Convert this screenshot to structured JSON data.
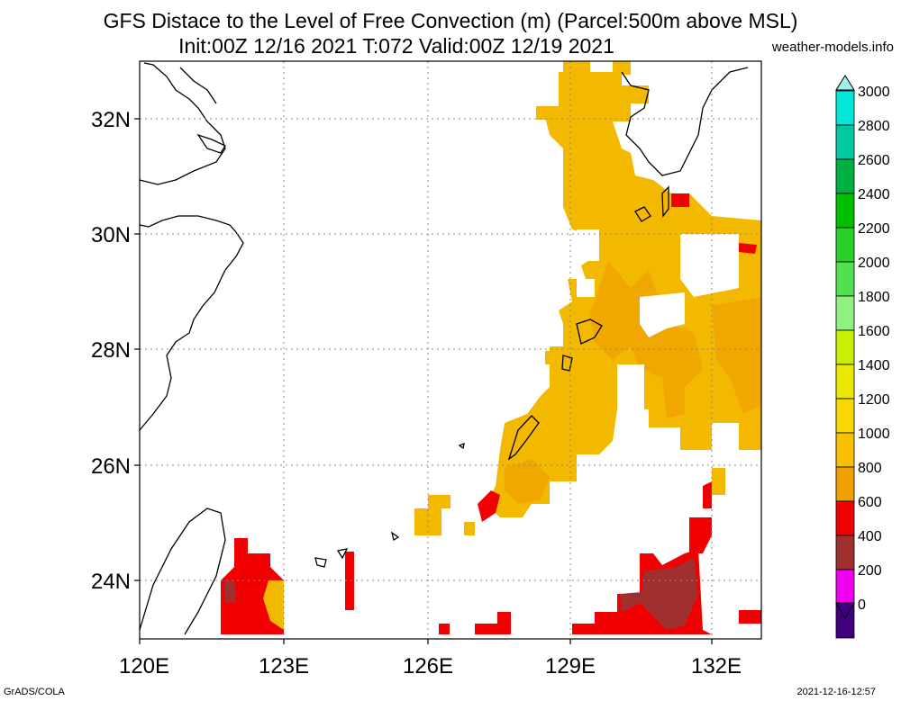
{
  "header": {
    "title_line1": "GFS Distace to the Level of Free Convection (m) (Parcel:500m above MSL)",
    "title_line2": "Init:00Z 12/16 2021 T:072 Valid:00Z 12/19 2021",
    "site": "weather-models.info"
  },
  "map": {
    "lon_ticks": [
      "120E",
      "123E",
      "126E",
      "129E",
      "132E"
    ],
    "lat_ticks": [
      "32N",
      "30N",
      "28N",
      "26N",
      "24N"
    ]
  },
  "colorbar": {
    "labels": [
      "3000",
      "2800",
      "2600",
      "2400",
      "2200",
      "2000",
      "1800",
      "1600",
      "1400",
      "1200",
      "1000",
      "800",
      "600",
      "400",
      "200",
      "0"
    ],
    "colors": [
      "#00e8d8",
      "#00c8a0",
      "#00b040",
      "#00c000",
      "#28d028",
      "#50e050",
      "#90f080",
      "#c8f000",
      "#e8e800",
      "#f8d800",
      "#f8c000",
      "#f0a000",
      "#f00000",
      "#a03030",
      "#f000f0",
      "#400080"
    ],
    "top_arrow_color": "#a0f0f0",
    "bottom_arrow_color": "#400080"
  },
  "footer": {
    "left": "GrADS/COLA",
    "right": "2021-12-16-12:57"
  }
}
